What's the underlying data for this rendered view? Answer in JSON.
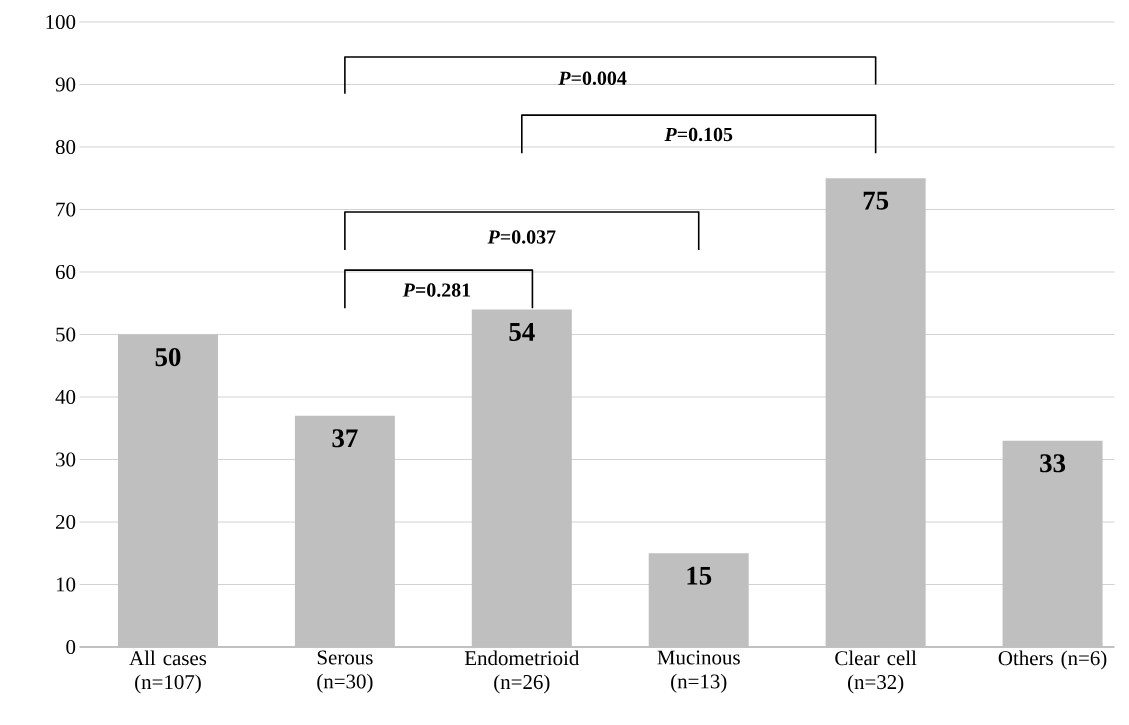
{
  "chart_data": {
    "type": "bar",
    "categories": [
      "All cases (n=107)",
      "Serous (n=30)",
      "Endometrioid (n=26)",
      "Mucinous (n=13)",
      "Clear cell (n=32)",
      "Others (n=6)"
    ],
    "values": [
      50,
      37,
      54,
      15,
      75,
      33
    ],
    "color": "#bfbfbf",
    "data_labels": true,
    "ylim": [
      0,
      100
    ],
    "yticks": [
      0,
      10,
      20,
      30,
      40,
      50,
      60,
      70,
      80,
      90,
      100
    ],
    "grid": "y",
    "annotations": [
      "*P*=0.004",
      "*P*=0.105",
      "*P*=0.037",
      "*P*=0.281"
    ]
  }
}
